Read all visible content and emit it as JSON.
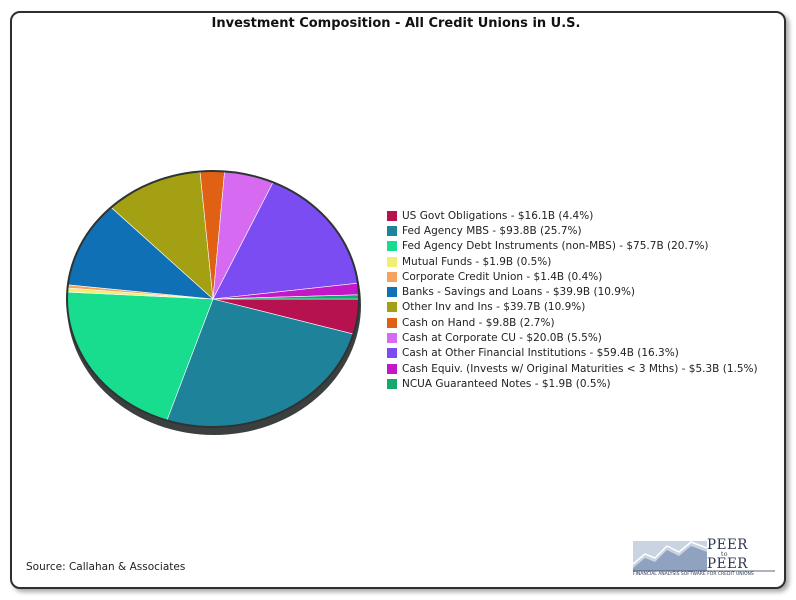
{
  "chart_data": {
    "type": "pie",
    "title": "Investment Composition - All Credit Unions in U.S.",
    "slices": [
      {
        "label": "US Govt Obligations - $16.1B (4.4%)",
        "value": 16.1,
        "percent": 4.4,
        "color": "#b5124f"
      },
      {
        "label": "Fed Agency MBS - $93.8B (25.7%)",
        "value": 93.8,
        "percent": 25.7,
        "color": "#1e839a"
      },
      {
        "label": "Fed Agency Debt Instruments (non-MBS) - $75.7B (20.7%)",
        "value": 75.7,
        "percent": 20.7,
        "color": "#19dd8e"
      },
      {
        "label": "Mutual Funds - $1.9B (0.5%)",
        "value": 1.9,
        "percent": 0.5,
        "color": "#f0ee73"
      },
      {
        "label": "Corporate Credit Union - $1.4B (0.4%)",
        "value": 1.4,
        "percent": 0.4,
        "color": "#f4a25e"
      },
      {
        "label": "Banks - Savings and Loans - $39.9B (10.9%)",
        "value": 39.9,
        "percent": 10.9,
        "color": "#0f70b5"
      },
      {
        "label": "Other Inv and Ins - $39.7B (10.9%)",
        "value": 39.7,
        "percent": 10.9,
        "color": "#a3a013"
      },
      {
        "label": "Cash on Hand - $9.8B (2.7%)",
        "value": 9.8,
        "percent": 2.7,
        "color": "#e06114"
      },
      {
        "label": "Cash at Corporate CU - $20.0B (5.5%)",
        "value": 20.0,
        "percent": 5.5,
        "color": "#d66af0"
      },
      {
        "label": "Cash at Other Financial Institutions - $59.4B (16.3%)",
        "value": 59.4,
        "percent": 16.3,
        "color": "#7b4cf2"
      },
      {
        "label": "Cash Equiv. (Invests w/ Original Maturities < 3 Mths) - $5.3B (1.5%)",
        "value": 5.3,
        "percent": 1.5,
        "color": "#c318c7"
      },
      {
        "label": "NCUA Guaranteed Notes - $1.9B (0.5%)",
        "value": 1.9,
        "percent": 0.5,
        "color": "#14a86d"
      }
    ],
    "legend_position": "right"
  },
  "source": "Source: Callahan & Associates",
  "logo": {
    "text_line1": "PEER",
    "text_line2": "PEER",
    "text_small": "to",
    "tagline": "FINANCIAL ANALYSIS SOFTWARE FOR CREDIT UNIONS"
  }
}
